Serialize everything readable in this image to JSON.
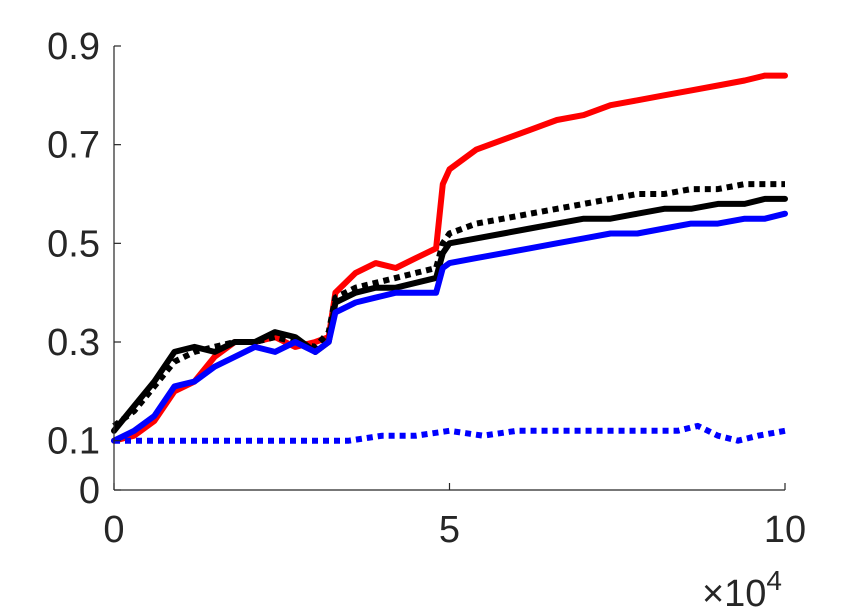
{
  "chart_data": {
    "type": "line",
    "title": "",
    "xlabel": "",
    "ylabel": "",
    "xlim": [
      0,
      100000
    ],
    "ylim": [
      0,
      0.9
    ],
    "x_ticks": [
      0,
      50000,
      100000
    ],
    "x_tick_labels": [
      "0",
      "5",
      "10"
    ],
    "x_exponent_base": "×10",
    "x_exponent_power": "4",
    "y_ticks": [
      0,
      0.1,
      0.3,
      0.5,
      0.7,
      0.9
    ],
    "y_tick_labels": [
      "0",
      "0.1",
      "0.3",
      "0.5",
      "0.7",
      "0.9"
    ],
    "grid": false,
    "legend": "none",
    "series": [
      {
        "color": "#ff0000",
        "line_style": "solid",
        "x": [
          0,
          3000,
          6000,
          9000,
          12000,
          15000,
          18000,
          21000,
          24000,
          27000,
          30000,
          32000,
          33000,
          36000,
          39000,
          42000,
          45000,
          48000,
          49000,
          50000,
          54000,
          58000,
          62000,
          66000,
          70000,
          74000,
          78000,
          82000,
          86000,
          90000,
          94000,
          97000,
          100000
        ],
        "y": [
          0.1,
          0.11,
          0.14,
          0.2,
          0.22,
          0.27,
          0.3,
          0.3,
          0.31,
          0.29,
          0.3,
          0.31,
          0.4,
          0.44,
          0.46,
          0.45,
          0.47,
          0.49,
          0.62,
          0.65,
          0.69,
          0.71,
          0.73,
          0.75,
          0.76,
          0.78,
          0.79,
          0.8,
          0.81,
          0.82,
          0.83,
          0.84,
          0.84
        ]
      },
      {
        "color": "#000000",
        "line_style": "dotted",
        "x": [
          0,
          3000,
          6000,
          9000,
          12000,
          15000,
          18000,
          21000,
          24000,
          27000,
          30000,
          32000,
          33000,
          36000,
          39000,
          42000,
          45000,
          48000,
          49000,
          50000,
          54000,
          58000,
          62000,
          66000,
          70000,
          74000,
          78000,
          82000,
          86000,
          90000,
          94000,
          97000,
          100000
        ],
        "y": [
          0.13,
          0.16,
          0.21,
          0.26,
          0.28,
          0.29,
          0.3,
          0.3,
          0.31,
          0.3,
          0.29,
          0.32,
          0.39,
          0.41,
          0.42,
          0.43,
          0.44,
          0.45,
          0.5,
          0.52,
          0.54,
          0.55,
          0.56,
          0.57,
          0.58,
          0.59,
          0.6,
          0.6,
          0.61,
          0.61,
          0.62,
          0.62,
          0.62
        ]
      },
      {
        "color": "#000000",
        "line_style": "solid",
        "x": [
          0,
          3000,
          6000,
          9000,
          12000,
          15000,
          18000,
          21000,
          24000,
          27000,
          30000,
          32000,
          33000,
          36000,
          39000,
          42000,
          45000,
          48000,
          49000,
          50000,
          54000,
          58000,
          62000,
          66000,
          70000,
          74000,
          78000,
          82000,
          86000,
          90000,
          94000,
          97000,
          100000
        ],
        "y": [
          0.12,
          0.17,
          0.22,
          0.28,
          0.29,
          0.28,
          0.3,
          0.3,
          0.32,
          0.31,
          0.28,
          0.3,
          0.38,
          0.4,
          0.41,
          0.41,
          0.42,
          0.43,
          0.48,
          0.5,
          0.51,
          0.52,
          0.53,
          0.54,
          0.55,
          0.55,
          0.56,
          0.57,
          0.57,
          0.58,
          0.58,
          0.59,
          0.59
        ]
      },
      {
        "color": "#0000ff",
        "line_style": "solid",
        "x": [
          0,
          3000,
          6000,
          9000,
          12000,
          15000,
          18000,
          21000,
          24000,
          27000,
          30000,
          32000,
          33000,
          36000,
          39000,
          42000,
          45000,
          48000,
          49000,
          50000,
          54000,
          58000,
          62000,
          66000,
          70000,
          74000,
          78000,
          82000,
          86000,
          90000,
          94000,
          97000,
          100000
        ],
        "y": [
          0.1,
          0.12,
          0.15,
          0.21,
          0.22,
          0.25,
          0.27,
          0.29,
          0.28,
          0.3,
          0.28,
          0.3,
          0.36,
          0.38,
          0.39,
          0.4,
          0.4,
          0.4,
          0.45,
          0.46,
          0.47,
          0.48,
          0.49,
          0.5,
          0.51,
          0.52,
          0.52,
          0.53,
          0.54,
          0.54,
          0.55,
          0.55,
          0.56
        ]
      },
      {
        "color": "#0000ff",
        "line_style": "dotted",
        "x": [
          0,
          5000,
          10000,
          15000,
          20000,
          25000,
          30000,
          35000,
          40000,
          45000,
          50000,
          55000,
          60000,
          65000,
          70000,
          75000,
          80000,
          84000,
          87000,
          90000,
          93000,
          96000,
          100000
        ],
        "y": [
          0.1,
          0.1,
          0.1,
          0.1,
          0.1,
          0.1,
          0.1,
          0.1,
          0.11,
          0.11,
          0.12,
          0.11,
          0.12,
          0.12,
          0.12,
          0.12,
          0.12,
          0.12,
          0.13,
          0.11,
          0.1,
          0.11,
          0.12
        ]
      }
    ]
  }
}
